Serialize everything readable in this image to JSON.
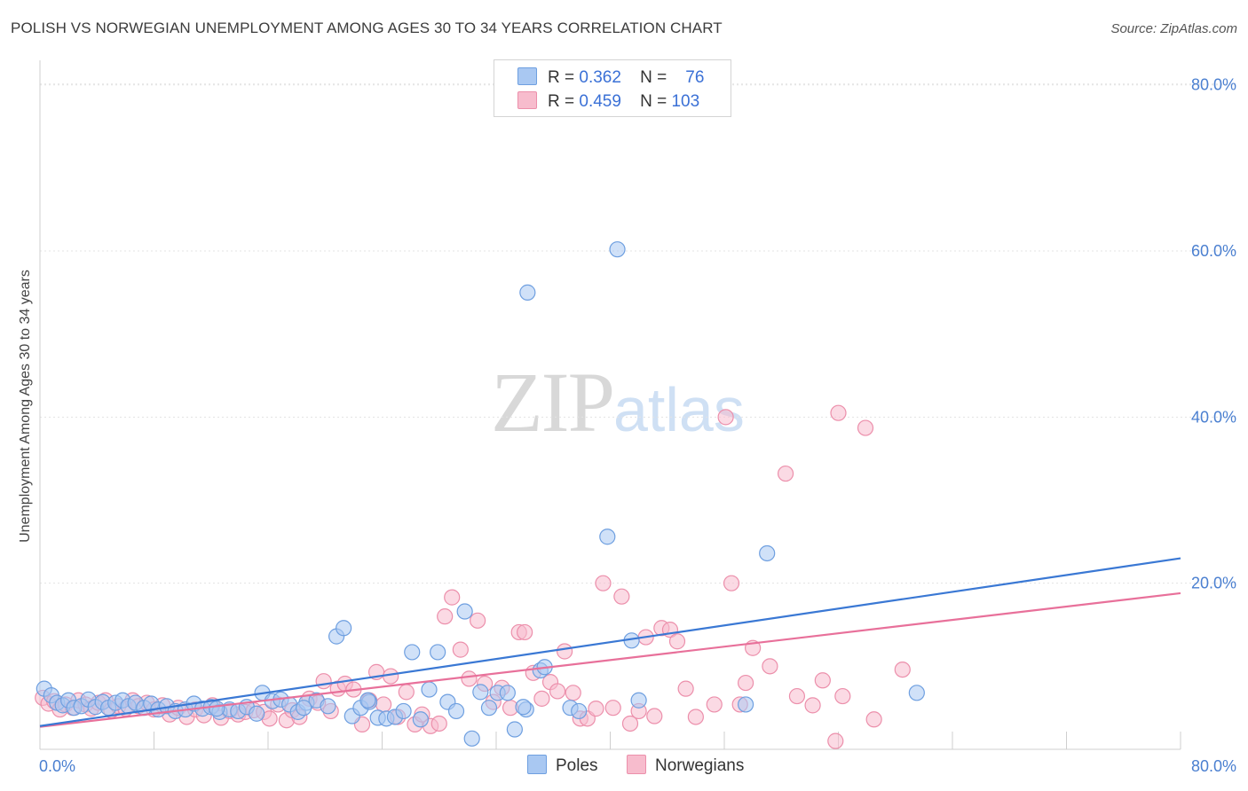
{
  "title": "POLISH VS NORWEGIAN UNEMPLOYMENT AMONG AGES 30 TO 34 YEARS CORRELATION CHART",
  "source": "Source: ZipAtlas.com",
  "watermark": {
    "zip": "ZIP",
    "atlas": "atlas"
  },
  "legend": {
    "rows": [
      {
        "r_label": "R =",
        "r_value": "0.362",
        "n_label": "N =",
        "n_value": "76",
        "color": "#a9c8f2"
      },
      {
        "r_label": "R =",
        "r_value": "0.459",
        "n_label": "N =",
        "n_value": "103",
        "color": "#f7bccd"
      }
    ],
    "series_names": [
      "Poles",
      "Norwegians"
    ]
  },
  "colors": {
    "poles_fill": "#a9c8f2",
    "poles_stroke": "#6e9fe0",
    "poles_line": "#3a78d4",
    "norw_fill": "#f7bccd",
    "norw_stroke": "#ec8fab",
    "norw_line": "#e8709a",
    "tick": "#4a7fd0",
    "grid": "#e3e3e3"
  },
  "chart_data": {
    "type": "scatter",
    "title": "POLISH VS NORWEGIAN UNEMPLOYMENT AMONG AGES 30 TO 34 YEARS CORRELATION CHART",
    "xlabel": "",
    "ylabel": "Unemployment Among Ages 30 to 34 years",
    "xlim": [
      0,
      80
    ],
    "ylim": [
      0,
      82
    ],
    "x_tick_labels": [
      "0.0%",
      "80.0%"
    ],
    "y_tick_labels": [
      "20.0%",
      "40.0%",
      "60.0%",
      "80.0%"
    ],
    "y_ticks": [
      20,
      40,
      60,
      80
    ],
    "grid": true,
    "legend_position": "bottom",
    "series": [
      {
        "name": "Poles",
        "trend": {
          "x": [
            0,
            80
          ],
          "y": [
            2.8,
            23.0
          ]
        },
        "points": [
          [
            0.3,
            7.3
          ],
          [
            0.8,
            6.5
          ],
          [
            1.2,
            5.6
          ],
          [
            1.6,
            5.3
          ],
          [
            2.0,
            5.9
          ],
          [
            2.4,
            5.0
          ],
          [
            2.9,
            5.2
          ],
          [
            3.4,
            6.0
          ],
          [
            3.9,
            5.1
          ],
          [
            4.4,
            5.7
          ],
          [
            4.8,
            5.0
          ],
          [
            5.3,
            5.6
          ],
          [
            5.8,
            5.9
          ],
          [
            6.2,
            5.2
          ],
          [
            6.7,
            5.6
          ],
          [
            7.3,
            5.0
          ],
          [
            7.8,
            5.5
          ],
          [
            8.3,
            4.8
          ],
          [
            8.9,
            5.2
          ],
          [
            9.5,
            4.6
          ],
          [
            10.2,
            4.8
          ],
          [
            10.8,
            5.5
          ],
          [
            11.4,
            4.9
          ],
          [
            12.0,
            5.1
          ],
          [
            12.6,
            4.5
          ],
          [
            13.3,
            4.8
          ],
          [
            13.9,
            4.6
          ],
          [
            14.5,
            5.1
          ],
          [
            15.2,
            4.3
          ],
          [
            15.6,
            6.8
          ],
          [
            16.3,
            5.8
          ],
          [
            16.9,
            6.0
          ],
          [
            17.5,
            5.4
          ],
          [
            18.1,
            4.5
          ],
          [
            18.7,
            5.6
          ],
          [
            19.4,
            5.9
          ],
          [
            20.2,
            5.2
          ],
          [
            20.8,
            13.6
          ],
          [
            21.3,
            14.6
          ],
          [
            21.9,
            4.0
          ],
          [
            22.5,
            5.0
          ],
          [
            23.1,
            5.7
          ],
          [
            23.7,
            3.8
          ],
          [
            24.3,
            3.7
          ],
          [
            24.9,
            3.9
          ],
          [
            25.5,
            4.6
          ],
          [
            26.1,
            11.7
          ],
          [
            26.7,
            3.6
          ],
          [
            27.3,
            7.2
          ],
          [
            27.9,
            11.7
          ],
          [
            28.6,
            5.7
          ],
          [
            29.2,
            4.6
          ],
          [
            29.8,
            16.6
          ],
          [
            30.3,
            1.3
          ],
          [
            30.9,
            6.9
          ],
          [
            31.5,
            5.0
          ],
          [
            32.1,
            6.8
          ],
          [
            32.8,
            6.8
          ],
          [
            33.3,
            2.4
          ],
          [
            34.1,
            4.8
          ],
          [
            33.9,
            5.1
          ],
          [
            34.2,
            55.0
          ],
          [
            35.1,
            9.5
          ],
          [
            35.4,
            9.9
          ],
          [
            37.2,
            5.0
          ],
          [
            37.8,
            4.6
          ],
          [
            39.8,
            25.6
          ],
          [
            40.5,
            60.2
          ],
          [
            41.5,
            13.1
          ],
          [
            49.5,
            5.4
          ],
          [
            51.0,
            23.6
          ],
          [
            61.5,
            6.8
          ],
          [
            42.0,
            5.9
          ],
          [
            23.0,
            5.9
          ],
          [
            12.4,
            4.9
          ],
          [
            18.5,
            5.0
          ]
        ]
      },
      {
        "name": "Norwegians",
        "trend": {
          "x": [
            0,
            80
          ],
          "y": [
            2.7,
            18.8
          ]
        },
        "points": [
          [
            0.2,
            6.2
          ],
          [
            0.6,
            5.5
          ],
          [
            1.0,
            5.8
          ],
          [
            1.4,
            4.8
          ],
          [
            1.8,
            5.4
          ],
          [
            2.3,
            5.0
          ],
          [
            2.7,
            5.9
          ],
          [
            3.2,
            5.4
          ],
          [
            3.6,
            4.9
          ],
          [
            4.1,
            5.6
          ],
          [
            4.6,
            5.9
          ],
          [
            5.0,
            4.7
          ],
          [
            5.5,
            5.2
          ],
          [
            6.0,
            4.9
          ],
          [
            6.5,
            5.9
          ],
          [
            6.9,
            5.2
          ],
          [
            7.5,
            5.6
          ],
          [
            8.0,
            4.8
          ],
          [
            8.6,
            5.3
          ],
          [
            9.1,
            4.2
          ],
          [
            9.7,
            5.0
          ],
          [
            10.3,
            3.9
          ],
          [
            10.9,
            4.8
          ],
          [
            11.5,
            4.1
          ],
          [
            12.1,
            5.3
          ],
          [
            12.7,
            3.8
          ],
          [
            13.3,
            4.6
          ],
          [
            13.9,
            4.2
          ],
          [
            14.4,
            4.5
          ],
          [
            15.0,
            4.7
          ],
          [
            15.7,
            4.5
          ],
          [
            16.1,
            3.7
          ],
          [
            16.7,
            5.4
          ],
          [
            17.3,
            3.5
          ],
          [
            17.7,
            4.7
          ],
          [
            18.2,
            3.9
          ],
          [
            18.9,
            6.1
          ],
          [
            19.5,
            5.6
          ],
          [
            19.9,
            8.2
          ],
          [
            20.4,
            4.6
          ],
          [
            20.9,
            7.3
          ],
          [
            21.4,
            7.9
          ],
          [
            22.0,
            7.2
          ],
          [
            22.6,
            3.0
          ],
          [
            23.1,
            5.9
          ],
          [
            23.6,
            9.3
          ],
          [
            24.1,
            5.4
          ],
          [
            24.6,
            8.8
          ],
          [
            25.1,
            3.9
          ],
          [
            25.7,
            6.9
          ],
          [
            26.3,
            3.0
          ],
          [
            26.8,
            4.2
          ],
          [
            27.4,
            2.8
          ],
          [
            28.0,
            3.1
          ],
          [
            28.4,
            16.0
          ],
          [
            28.9,
            18.3
          ],
          [
            29.5,
            12.0
          ],
          [
            30.1,
            8.5
          ],
          [
            30.7,
            15.5
          ],
          [
            31.2,
            7.9
          ],
          [
            31.8,
            5.7
          ],
          [
            32.4,
            7.4
          ],
          [
            33.0,
            5.0
          ],
          [
            33.6,
            14.1
          ],
          [
            34.0,
            14.1
          ],
          [
            34.6,
            9.2
          ],
          [
            35.2,
            6.1
          ],
          [
            35.8,
            8.1
          ],
          [
            36.3,
            7.0
          ],
          [
            36.8,
            11.8
          ],
          [
            37.4,
            6.8
          ],
          [
            37.9,
            3.7
          ],
          [
            38.4,
            3.7
          ],
          [
            39.0,
            4.9
          ],
          [
            39.5,
            20.0
          ],
          [
            40.2,
            5.0
          ],
          [
            40.8,
            18.4
          ],
          [
            41.4,
            3.1
          ],
          [
            42.0,
            4.6
          ],
          [
            42.5,
            13.5
          ],
          [
            43.1,
            4.0
          ],
          [
            43.6,
            14.6
          ],
          [
            44.2,
            14.4
          ],
          [
            44.7,
            13.0
          ],
          [
            45.3,
            7.3
          ],
          [
            46.0,
            3.9
          ],
          [
            47.3,
            5.4
          ],
          [
            48.1,
            40.0
          ],
          [
            48.5,
            20.0
          ],
          [
            49.1,
            5.4
          ],
          [
            49.5,
            8.0
          ],
          [
            50.0,
            12.2
          ],
          [
            51.2,
            10.0
          ],
          [
            52.3,
            33.2
          ],
          [
            53.1,
            6.4
          ],
          [
            54.2,
            5.3
          ],
          [
            54.9,
            8.3
          ],
          [
            56.0,
            40.5
          ],
          [
            56.3,
            6.4
          ],
          [
            57.9,
            38.7
          ],
          [
            58.5,
            3.6
          ],
          [
            60.5,
            9.6
          ],
          [
            55.8,
            1.0
          ]
        ]
      }
    ]
  }
}
